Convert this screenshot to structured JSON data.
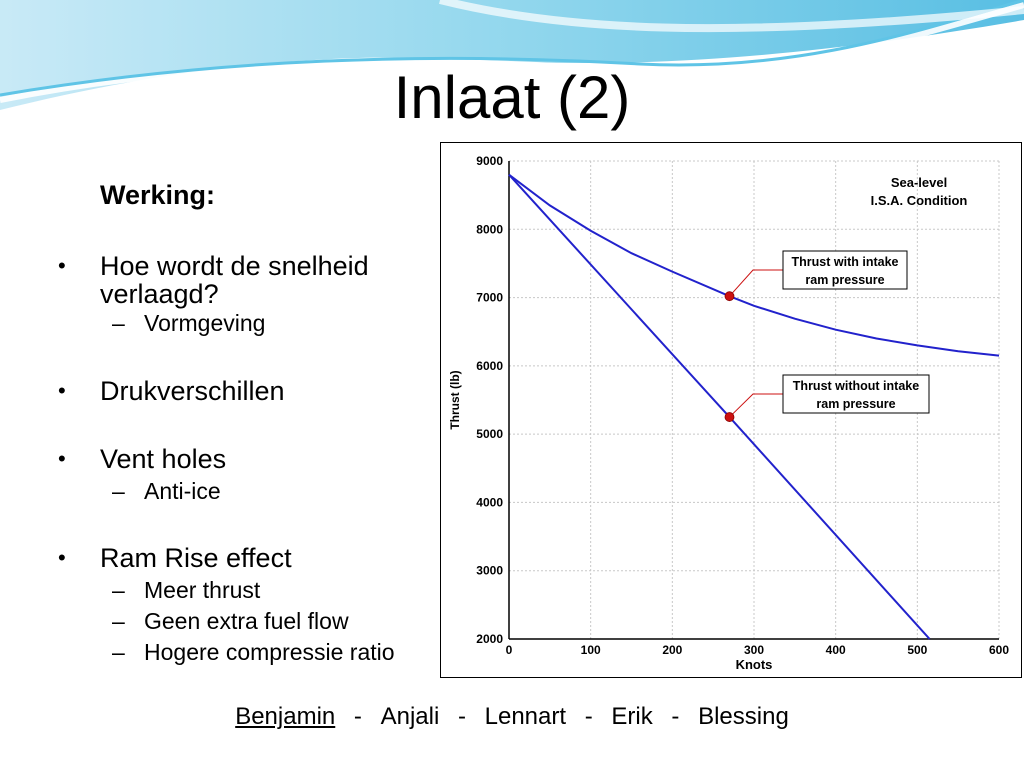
{
  "slide": {
    "title": "Inlaat (2)",
    "heading": "Werking:",
    "bullets": [
      {
        "text": "Hoe wordt de snelheid verlaagd?",
        "subs": [
          "Vormgeving"
        ]
      },
      {
        "text": "Drukverschillen",
        "subs": []
      },
      {
        "text": "Vent holes",
        "subs": [
          "Anti-ice"
        ]
      },
      {
        "text": "Ram Rise effect",
        "subs": [
          "Meer thrust",
          "Geen extra fuel flow",
          "Hogere compressie ratio"
        ]
      }
    ],
    "dash": "–",
    "bullet_symbol": "•"
  },
  "footer": {
    "names": [
      "Benjamin",
      "Anjali",
      "Lennart",
      "Erik",
      "Blessing"
    ],
    "separator": "-"
  },
  "colors": {
    "line": "#2222cc",
    "marker": "#cc1111",
    "callout": "#cc1111"
  },
  "chart_data": {
    "type": "line",
    "title": "",
    "condition_label": [
      "Sea-level",
      "I.S.A. Condition"
    ],
    "xlabel": "Knots",
    "ylabel": "Thrust (lb)",
    "xlim": [
      0,
      600
    ],
    "ylim": [
      2000,
      9000
    ],
    "xticks": [
      0,
      100,
      200,
      300,
      400,
      500,
      600
    ],
    "yticks": [
      2000,
      3000,
      4000,
      5000,
      6000,
      7000,
      8000,
      9000
    ],
    "grid": true,
    "series": [
      {
        "name": "Thrust with intake ram pressure",
        "x": [
          0,
          50,
          100,
          150,
          200,
          270,
          300,
          350,
          400,
          450,
          500,
          550,
          600
        ],
        "y": [
          8800,
          8350,
          7980,
          7650,
          7380,
          7020,
          6880,
          6690,
          6530,
          6400,
          6300,
          6215,
          6150
        ],
        "marker_x": 270,
        "marker_y": 7020,
        "label_lines": [
          "Thrust with intake",
          "ram pressure"
        ]
      },
      {
        "name": "Thrust without intake ram pressure",
        "x": [
          0,
          270,
          515
        ],
        "y": [
          8800,
          5250,
          2000
        ],
        "marker_x": 270,
        "marker_y": 5250,
        "label_lines": [
          "Thrust without intake",
          "ram pressure"
        ]
      }
    ]
  }
}
